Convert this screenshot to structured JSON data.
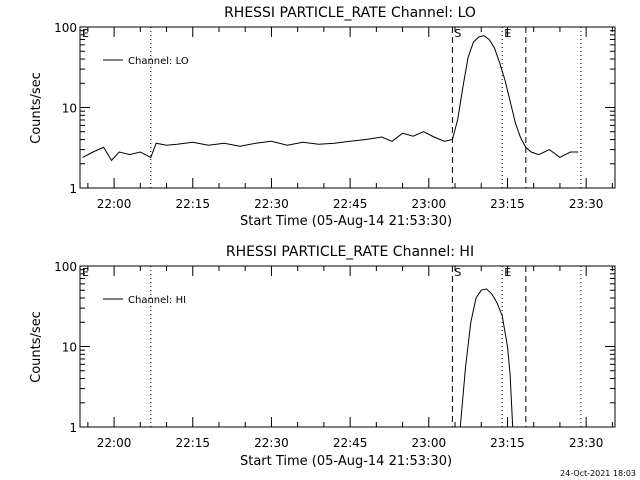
{
  "footer_timestamp": "24-Oct-2021 18:03",
  "chart_data": [
    {
      "type": "line",
      "title": "RHESSI PARTICLE_RATE Channel: LO",
      "xlabel": "Start Time (05-Aug-14 21:53:30)",
      "ylabel": "Counts/sec",
      "y_scale": "log",
      "ylim": [
        1,
        100
      ],
      "y_ticks": [
        1,
        10,
        100
      ],
      "y_tick_labels": [
        "1",
        "10",
        "100"
      ],
      "xlim": [
        "21:53:30",
        "23:35:30"
      ],
      "x_ticks": [
        "22:00",
        "22:15",
        "22:30",
        "22:45",
        "23:00",
        "23:15",
        "23:30"
      ],
      "legend": {
        "position": "top-left",
        "entries": [
          "Channel: LO"
        ]
      },
      "markers": [
        {
          "label": "E",
          "time": "21:53:30",
          "style": "none"
        },
        {
          "label": "",
          "time": "22:07:00",
          "style": "dotted"
        },
        {
          "label": "S",
          "time": "23:04:30",
          "style": "dashed"
        },
        {
          "label": "E",
          "time": "23:14:00",
          "style": "dotted"
        },
        {
          "label": "",
          "time": "23:18:30",
          "style": "dashed"
        },
        {
          "label": "",
          "time": "23:29:00",
          "style": "dotted"
        }
      ],
      "series": [
        {
          "name": "Channel: LO",
          "x": [
            "21:54:00",
            "21:56:00",
            "21:58:00",
            "21:59:30",
            "22:01:00",
            "22:03:00",
            "22:05:00",
            "22:07:00",
            "22:08:00",
            "22:10:00",
            "22:12:00",
            "22:15:00",
            "22:18:00",
            "22:21:00",
            "22:24:00",
            "22:27:00",
            "22:30:00",
            "22:33:00",
            "22:36:00",
            "22:39:00",
            "22:42:00",
            "22:45:00",
            "22:48:00",
            "22:51:00",
            "22:53:00",
            "22:55:00",
            "22:57:00",
            "22:59:00",
            "23:01:00",
            "23:03:00",
            "23:04:30",
            "23:05:30",
            "23:06:30",
            "23:07:30",
            "23:08:30",
            "23:09:30",
            "23:10:30",
            "23:11:30",
            "23:12:30",
            "23:13:30",
            "23:14:30",
            "23:15:30",
            "23:16:30",
            "23:17:30",
            "23:18:30",
            "23:19:30",
            "23:21:00",
            "23:23:00",
            "23:25:00",
            "23:27:00",
            "23:28:30"
          ],
          "values": [
            2.4,
            2.8,
            3.2,
            2.2,
            2.8,
            2.6,
            2.8,
            2.4,
            3.6,
            3.4,
            3.5,
            3.7,
            3.4,
            3.6,
            3.3,
            3.6,
            3.8,
            3.4,
            3.7,
            3.5,
            3.6,
            3.8,
            4.0,
            4.3,
            3.8,
            4.8,
            4.4,
            5.0,
            4.3,
            3.8,
            4.0,
            7.0,
            18,
            42,
            65,
            75,
            78,
            70,
            55,
            36,
            22,
            12,
            6.5,
            4.2,
            3.2,
            2.8,
            2.6,
            3.0,
            2.4,
            2.8,
            2.8
          ]
        }
      ]
    },
    {
      "type": "line",
      "title": "RHESSI PARTICLE_RATE Channel: HI",
      "xlabel": "Start Time (05-Aug-14 21:53:30)",
      "ylabel": "Counts/sec",
      "y_scale": "log",
      "ylim": [
        1,
        100
      ],
      "y_ticks": [
        1,
        10,
        100
      ],
      "y_tick_labels": [
        "1",
        "10",
        "100"
      ],
      "xlim": [
        "21:53:30",
        "23:35:30"
      ],
      "x_ticks": [
        "22:00",
        "22:15",
        "22:30",
        "22:45",
        "23:00",
        "23:15",
        "23:30"
      ],
      "legend": {
        "position": "top-left",
        "entries": [
          "Channel: HI"
        ]
      },
      "markers": [
        {
          "label": "E",
          "time": "21:53:30",
          "style": "none"
        },
        {
          "label": "",
          "time": "22:07:00",
          "style": "dotted"
        },
        {
          "label": "S",
          "time": "23:04:30",
          "style": "dashed"
        },
        {
          "label": "E",
          "time": "23:14:00",
          "style": "dotted"
        },
        {
          "label": "",
          "time": "23:18:30",
          "style": "dashed"
        },
        {
          "label": "",
          "time": "23:29:00",
          "style": "dotted"
        }
      ],
      "series": [
        {
          "name": "Channel: HI",
          "x": [
            "23:06:00",
            "23:07:00",
            "23:08:00",
            "23:09:00",
            "23:10:00",
            "23:11:00",
            "23:12:00",
            "23:13:00",
            "23:14:00",
            "23:15:00",
            "23:15:30",
            "23:16:00"
          ],
          "values": [
            1.0,
            5.5,
            20,
            40,
            50,
            52,
            45,
            35,
            24,
            10,
            4.5,
            1.0
          ]
        }
      ]
    }
  ]
}
